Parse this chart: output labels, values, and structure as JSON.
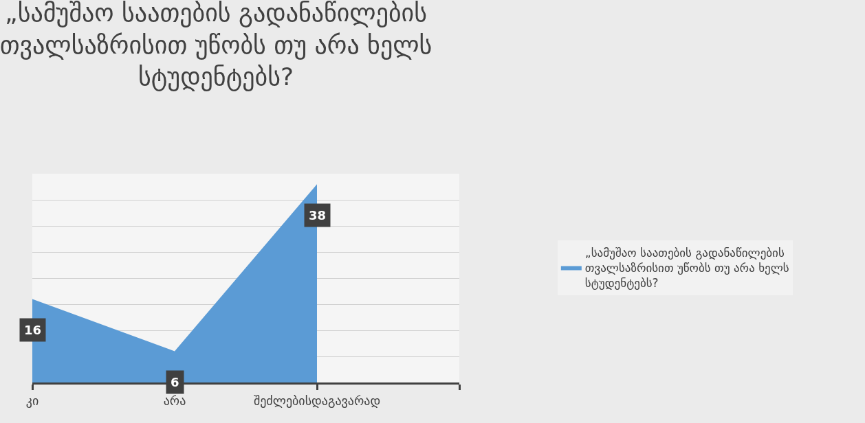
{
  "chart_data": {
    "type": "area",
    "title": "„სამუშაო საათების გადანაწილების თვალსაზრისით უწობს თუ არა ხელს სტუდენტებს?",
    "categories": [
      "კი",
      "არა",
      "შეძლებისდაგავარად",
      null
    ],
    "series": [
      {
        "name": "„სამუშაო საათების გადანაწილების თვალსაზრისით უწობს თუ არა ხელს სტუდენტებს?",
        "color": "#5b9bd5",
        "values": [
          16,
          6,
          38,
          null
        ]
      }
    ],
    "ylim": [
      0,
      40
    ],
    "yticks": [
      {
        "value": 0,
        "label": null
      },
      {
        "value": 5,
        "label": null
      },
      {
        "value": 10,
        "label": null
      },
      {
        "value": 15,
        "label": null
      },
      {
        "value": 20,
        "label": null
      },
      {
        "value": 25,
        "label": null
      },
      {
        "value": 30,
        "label": null
      },
      {
        "value": 35,
        "label": null
      },
      {
        "value": 40,
        "label": null
      }
    ],
    "grid": "y",
    "legend": "right",
    "data_labels": true,
    "tick_labels": "x"
  }
}
